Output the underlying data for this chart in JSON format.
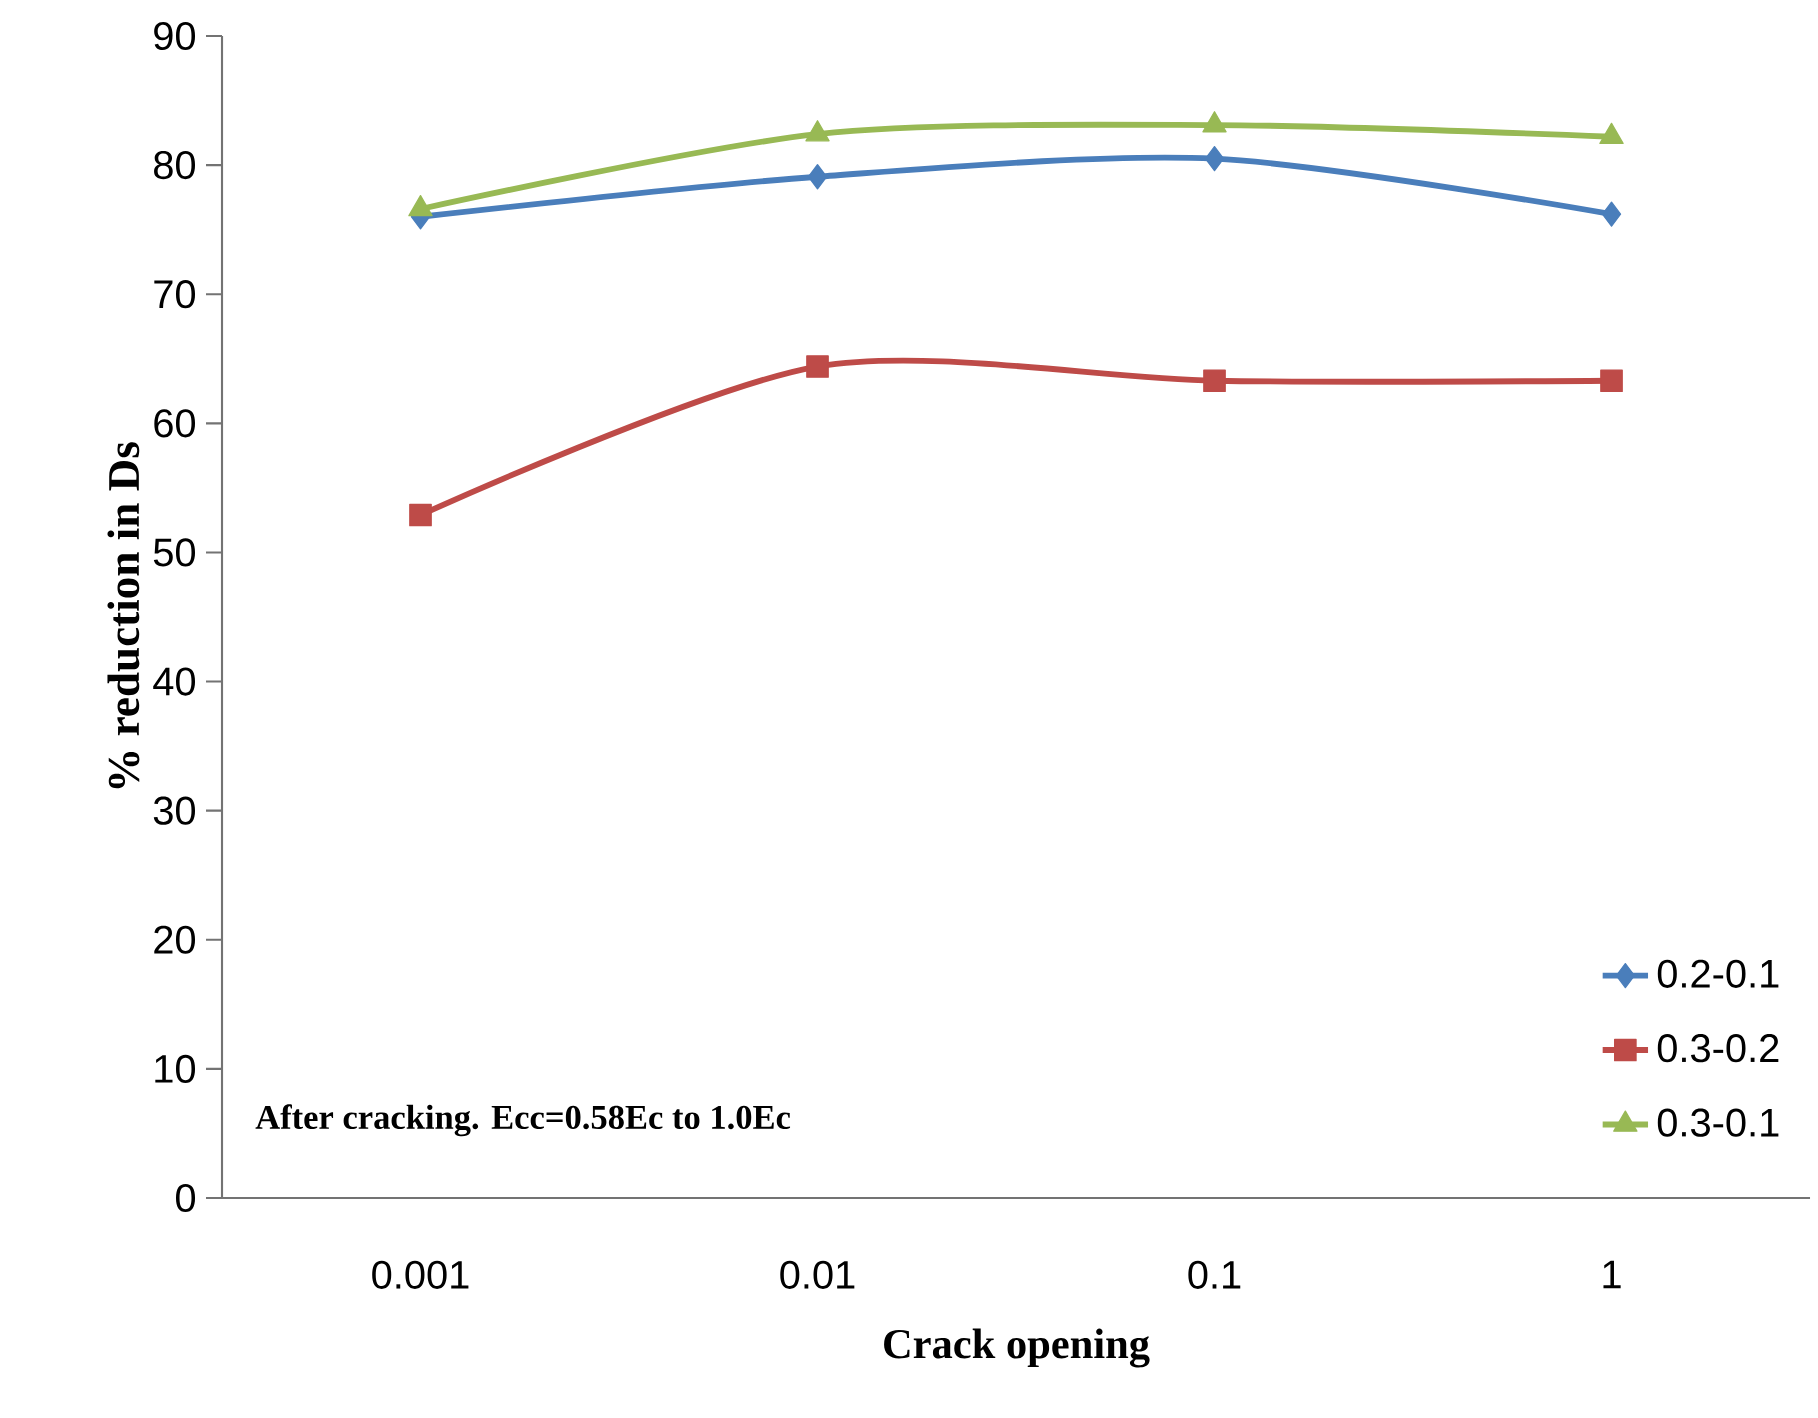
{
  "chart_data": {
    "type": "line",
    "xlabel": "Crack opening",
    "ylabel": "% reduction in Ds",
    "categories": [
      "0.001",
      "0.01",
      "0.1",
      "1"
    ],
    "series": [
      {
        "name": "0.2-0.1",
        "color": "#4a7ebb",
        "marker": "diamond",
        "values": [
          76,
          79.1,
          80.5,
          76.2
        ]
      },
      {
        "name": "0.3-0.2",
        "color": "#be4b48",
        "marker": "square",
        "values": [
          52.9,
          64.4,
          63.3,
          63.3
        ]
      },
      {
        "name": "0.3-0.1",
        "color": "#98b954",
        "marker": "triangle",
        "values": [
          76.6,
          82.4,
          83.1,
          82.2
        ]
      }
    ],
    "ylim": [
      0,
      90
    ],
    "yticks": [
      0,
      10,
      20,
      30,
      40,
      50,
      60,
      70,
      80,
      90
    ],
    "legend": "bottom right",
    "grid": false,
    "annotations": [
      "After cracking. Ecc=0.58Ec to 1.0Ec"
    ]
  }
}
